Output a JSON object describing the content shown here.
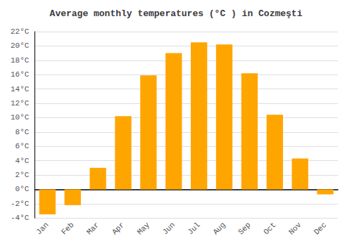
{
  "chart_data": {
    "type": "bar",
    "title": "Average monthly temperatures (°C ) in Cozmeşti",
    "categories": [
      "Jan",
      "Feb",
      "Mar",
      "Apr",
      "May",
      "Jun",
      "Jul",
      "Aug",
      "Sep",
      "Oct",
      "Nov",
      "Dec"
    ],
    "values": [
      -3.5,
      -2.2,
      3.0,
      10.2,
      15.9,
      19.0,
      20.5,
      20.2,
      16.2,
      10.4,
      4.3,
      -0.7
    ],
    "color": "#FFA500",
    "ylim": [
      -4,
      22
    ],
    "yticks": [
      {
        "value": -4,
        "label": "-4°C"
      },
      {
        "value": -2,
        "label": "-2°C"
      },
      {
        "value": 0,
        "label": "0°C"
      },
      {
        "value": 2,
        "label": "2°C"
      },
      {
        "value": 4,
        "label": "4°C"
      },
      {
        "value": 6,
        "label": "6°C"
      },
      {
        "value": 8,
        "label": "8°C"
      },
      {
        "value": 10,
        "label": "10°C"
      },
      {
        "value": 12,
        "label": "12°C"
      },
      {
        "value": 14,
        "label": "14°C"
      },
      {
        "value": 16,
        "label": "16°C"
      },
      {
        "value": 18,
        "label": "18°C"
      },
      {
        "value": 20,
        "label": "20°C"
      },
      {
        "value": 22,
        "label": "22°C"
      }
    ],
    "grid": true
  }
}
